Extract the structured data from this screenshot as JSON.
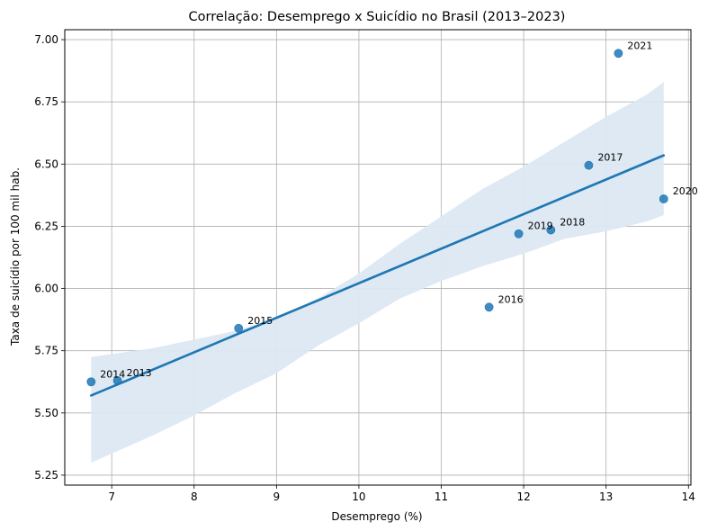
{
  "chart_data": {
    "type": "scatter",
    "title": "Correlação: Desemprego x Suicídio no Brasil (2013–2023)",
    "xlabel": "Desemprego (%)",
    "ylabel": "Taxa de suicídio por 100 mil hab.",
    "xlim": [
      6.43,
      14.03
    ],
    "ylim": [
      5.21,
      7.04
    ],
    "xticks": [
      7,
      8,
      9,
      10,
      11,
      12,
      13,
      14
    ],
    "yticks": [
      5.25,
      5.5,
      5.75,
      6.0,
      6.25,
      6.5,
      6.75,
      7.0
    ],
    "grid": true,
    "points": [
      {
        "label": "2013",
        "x": 7.07,
        "y": 5.63
      },
      {
        "label": "2014",
        "x": 6.75,
        "y": 5.625
      },
      {
        "label": "2015",
        "x": 8.54,
        "y": 5.84
      },
      {
        "label": "2016",
        "x": 11.58,
        "y": 5.925
      },
      {
        "label": "2017",
        "x": 12.79,
        "y": 6.495
      },
      {
        "label": "2018",
        "x": 12.33,
        "y": 6.235
      },
      {
        "label": "2019",
        "x": 11.94,
        "y": 6.22
      },
      {
        "label": "2020",
        "x": 13.7,
        "y": 6.36
      },
      {
        "label": "2021",
        "x": 13.15,
        "y": 6.945
      }
    ],
    "regression": {
      "x": [
        6.75,
        13.7
      ],
      "y": [
        5.57,
        6.535
      ]
    },
    "confidence_band": {
      "x": [
        6.75,
        7.5,
        8.0,
        8.5,
        9.0,
        9.5,
        10.0,
        10.5,
        11.0,
        11.5,
        12.0,
        12.5,
        13.0,
        13.5,
        13.7
      ],
      "upper": [
        5.725,
        5.76,
        5.795,
        5.83,
        5.88,
        5.96,
        6.06,
        6.18,
        6.29,
        6.4,
        6.49,
        6.59,
        6.69,
        6.78,
        6.83
      ],
      "lower": [
        5.3,
        5.41,
        5.49,
        5.58,
        5.66,
        5.77,
        5.86,
        5.96,
        6.03,
        6.09,
        6.14,
        6.2,
        6.23,
        6.27,
        6.295
      ]
    },
    "colors": {
      "points": "#1f77b4",
      "line": "#1f77b4",
      "band": "#dce8f3",
      "grid": "#b0b0b0",
      "axes": "#000000"
    }
  }
}
